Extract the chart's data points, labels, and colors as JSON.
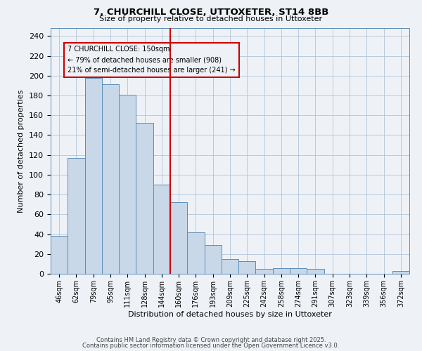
{
  "title": "7, CHURCHILL CLOSE, UTTOXETER, ST14 8BB",
  "subtitle": "Size of property relative to detached houses in Uttoxeter",
  "xlabel": "Distribution of detached houses by size in Uttoxeter",
  "ylabel": "Number of detached properties",
  "bar_labels": [
    "46sqm",
    "62sqm",
    "79sqm",
    "95sqm",
    "111sqm",
    "128sqm",
    "144sqm",
    "160sqm",
    "176sqm",
    "193sqm",
    "209sqm",
    "225sqm",
    "242sqm",
    "258sqm",
    "274sqm",
    "291sqm",
    "307sqm",
    "323sqm",
    "339sqm",
    "356sqm",
    "372sqm"
  ],
  "bar_values": [
    38,
    117,
    198,
    191,
    181,
    152,
    90,
    72,
    42,
    29,
    15,
    13,
    5,
    6,
    6,
    5,
    0,
    0,
    0,
    0,
    3
  ],
  "bar_color": "#c8d8e8",
  "bar_edge_color": "#5b8db8",
  "vline_color": "#cc0000",
  "annotation_title": "7 CHURCHILL CLOSE: 150sqm",
  "annotation_line1": "← 79% of detached houses are smaller (908)",
  "annotation_line2": "21% of semi-detached houses are larger (241) →",
  "annotation_box_edge": "#cc0000",
  "ylim": [
    0,
    248
  ],
  "yticks": [
    0,
    20,
    40,
    60,
    80,
    100,
    120,
    140,
    160,
    180,
    200,
    220,
    240
  ],
  "grid_color": "#b0c4d8",
  "background_color": "#eef2f7",
  "footer1": "Contains HM Land Registry data © Crown copyright and database right 2025.",
  "footer2": "Contains public sector information licensed under the Open Government Licence v3.0."
}
